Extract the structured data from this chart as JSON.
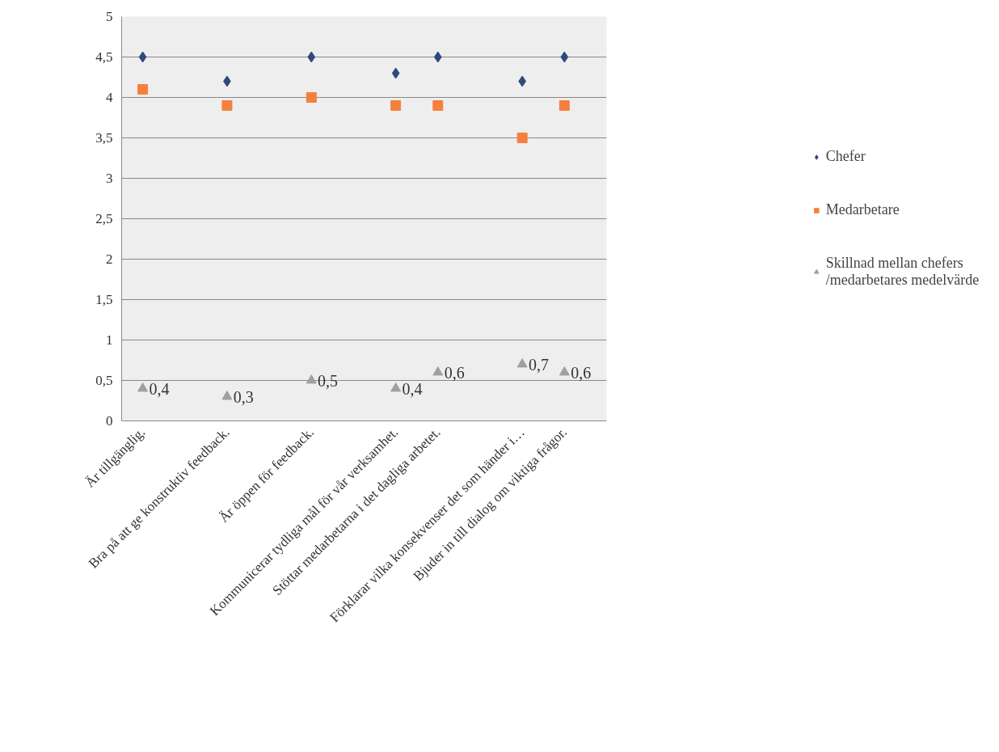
{
  "chart_data": {
    "type": "scatter",
    "categories": [
      "Är tillgänglig.",
      null,
      "Bra på att ge konstruktiv feedback.",
      null,
      "Är öppen för feedback.",
      null,
      "Kommunicerar tydliga mål för vår verksamhet.",
      "Stöttar medarbetarna i det dagliga arbetet.",
      null,
      "Förklarar vilka konsekvenser det som händer i…",
      "Bjuder in till dialog om viktiga frågor."
    ],
    "series": [
      {
        "name": "Chefer",
        "color": "#2e4a7a",
        "marker": "diamond",
        "values": [
          4.5,
          null,
          4.2,
          null,
          4.5,
          null,
          4.3,
          4.5,
          null,
          4.2,
          4.5
        ]
      },
      {
        "name": "Medarbetare",
        "color": "#f5803e",
        "marker": "square",
        "values": [
          4.1,
          null,
          3.9,
          null,
          4.0,
          null,
          3.9,
          3.9,
          null,
          3.5,
          3.9
        ]
      },
      {
        "name": "Skillnad mellan chefers /medarbetares medelvärde",
        "color": "#a0a0a0",
        "marker": "triangle",
        "values": [
          0.4,
          null,
          0.3,
          null,
          0.5,
          null,
          0.4,
          0.6,
          null,
          0.7,
          0.6
        ],
        "value_labels": [
          "0,4",
          null,
          "0,3",
          null,
          "0,5",
          null,
          "0,4",
          "0,6",
          null,
          "0,7",
          "0,6"
        ]
      }
    ],
    "ylim": [
      0,
      5
    ],
    "yticks": [
      0,
      {
        "value": 0.5,
        "label": "0,5"
      },
      1,
      {
        "value": 1.5,
        "label": "1,5"
      },
      2,
      {
        "value": 2.5,
        "label": "2,5"
      },
      3,
      {
        "value": 3.5,
        "label": "3,5"
      },
      4,
      {
        "value": 4.5,
        "label": "4,5"
      },
      5
    ],
    "grid": "y",
    "legend": "right"
  }
}
